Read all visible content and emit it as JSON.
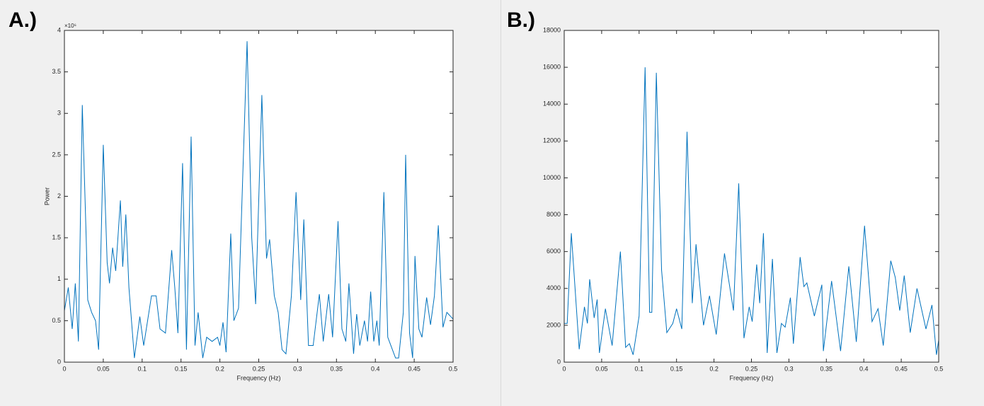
{
  "chart_data": [
    {
      "type": "line",
      "panel_label": "A.)",
      "xlabel": "Frequency (Hz)",
      "ylabel": "Power",
      "y_exponent_label": "×10⁶",
      "color": "#0072bd",
      "xlim": [
        0,
        0.5
      ],
      "ylim": [
        0,
        4
      ],
      "xticks": [
        0,
        0.05,
        0.1,
        0.15,
        0.2,
        0.25,
        0.3,
        0.35,
        0.4,
        0.45,
        0.5
      ],
      "yticks": [
        0,
        0.5,
        1,
        1.5,
        2,
        2.5,
        3,
        3.5,
        4
      ],
      "x": [
        0,
        0.005,
        0.01,
        0.014,
        0.018,
        0.023,
        0.028,
        0.03,
        0.035,
        0.04,
        0.044,
        0.05,
        0.055,
        0.058,
        0.062,
        0.066,
        0.072,
        0.075,
        0.079,
        0.083,
        0.09,
        0.097,
        0.102,
        0.112,
        0.118,
        0.123,
        0.13,
        0.138,
        0.142,
        0.146,
        0.152,
        0.157,
        0.163,
        0.168,
        0.172,
        0.178,
        0.183,
        0.19,
        0.197,
        0.2,
        0.204,
        0.208,
        0.214,
        0.218,
        0.224,
        0.235,
        0.241,
        0.246,
        0.254,
        0.26,
        0.264,
        0.27,
        0.275,
        0.28,
        0.285,
        0.292,
        0.298,
        0.304,
        0.308,
        0.314,
        0.32,
        0.328,
        0.333,
        0.34,
        0.345,
        0.352,
        0.357,
        0.362,
        0.366,
        0.372,
        0.376,
        0.38,
        0.386,
        0.39,
        0.394,
        0.398,
        0.402,
        0.405,
        0.411,
        0.416,
        0.42,
        0.426,
        0.43,
        0.436,
        0.439,
        0.444,
        0.448,
        0.451,
        0.456,
        0.46,
        0.466,
        0.471,
        0.476,
        0.481,
        0.487,
        0.492,
        0.5
      ],
      "values": [
        0.62,
        0.9,
        0.4,
        0.95,
        0.25,
        3.1,
        1.5,
        0.75,
        0.6,
        0.5,
        0.15,
        2.62,
        1.2,
        0.95,
        1.38,
        1.1,
        1.95,
        1.15,
        1.78,
        0.9,
        0.05,
        0.55,
        0.2,
        0.8,
        0.8,
        0.4,
        0.35,
        1.35,
        0.9,
        0.35,
        2.4,
        0.15,
        2.72,
        0.2,
        0.6,
        0.05,
        0.3,
        0.25,
        0.3,
        0.2,
        0.48,
        0.12,
        1.55,
        0.5,
        0.65,
        3.87,
        1.5,
        0.7,
        3.22,
        1.25,
        1.48,
        0.8,
        0.6,
        0.15,
        0.1,
        0.8,
        2.05,
        0.75,
        1.72,
        0.2,
        0.2,
        0.82,
        0.25,
        0.82,
        0.3,
        1.7,
        0.4,
        0.25,
        0.95,
        0.1,
        0.58,
        0.2,
        0.5,
        0.25,
        0.85,
        0.25,
        0.5,
        0.2,
        2.05,
        0.3,
        0.2,
        0.05,
        0.05,
        0.6,
        2.5,
        0.35,
        0.05,
        1.28,
        0.4,
        0.3,
        0.78,
        0.45,
        0.8,
        1.65,
        0.42,
        0.6,
        0.52
      ]
    },
    {
      "type": "line",
      "panel_label": "B.)",
      "xlabel": "Frequency (Hz)",
      "color": "#0072bd",
      "xlim": [
        0,
        0.5
      ],
      "ylim": [
        0,
        18000
      ],
      "xticks": [
        0,
        0.05,
        0.1,
        0.15,
        0.2,
        0.25,
        0.3,
        0.35,
        0.4,
        0.45,
        0.5
      ],
      "yticks": [
        0,
        2000,
        4000,
        6000,
        8000,
        10000,
        12000,
        14000,
        16000,
        18000
      ],
      "x": [
        0,
        0.004,
        0.0095,
        0.02,
        0.027,
        0.031,
        0.034,
        0.04,
        0.044,
        0.047,
        0.055,
        0.064,
        0.075,
        0.082,
        0.087,
        0.092,
        0.1,
        0.108,
        0.114,
        0.117,
        0.123,
        0.13,
        0.137,
        0.145,
        0.15,
        0.157,
        0.164,
        0.171,
        0.176,
        0.186,
        0.194,
        0.203,
        0.214,
        0.226,
        0.233,
        0.24,
        0.247,
        0.251,
        0.257,
        0.261,
        0.266,
        0.271,
        0.278,
        0.284,
        0.29,
        0.295,
        0.302,
        0.306,
        0.315,
        0.32,
        0.324,
        0.334,
        0.344,
        0.346,
        0.357,
        0.369,
        0.38,
        0.39,
        0.401,
        0.411,
        0.419,
        0.426,
        0.436,
        0.442,
        0.448,
        0.454,
        0.462,
        0.471,
        0.483,
        0.491,
        0.497,
        0.5
      ],
      "values": [
        2100,
        2100,
        7000,
        700,
        3000,
        2100,
        4500,
        2400,
        3400,
        500,
        2900,
        900,
        6000,
        800,
        1000,
        400,
        2500,
        16000,
        2700,
        2700,
        15700,
        5000,
        1600,
        2100,
        2900,
        1800,
        12500,
        3200,
        6400,
        2000,
        3600,
        1500,
        5900,
        2800,
        9700,
        1300,
        3000,
        2200,
        5300,
        3200,
        7000,
        500,
        5600,
        500,
        2100,
        1900,
        3500,
        1000,
        5700,
        4100,
        4300,
        2500,
        4200,
        600,
        4400,
        600,
        5200,
        1100,
        7400,
        2200,
        2900,
        900,
        5500,
        4600,
        2800,
        4700,
        1600,
        4000,
        1800,
        3100,
        400,
        1200
      ]
    }
  ]
}
